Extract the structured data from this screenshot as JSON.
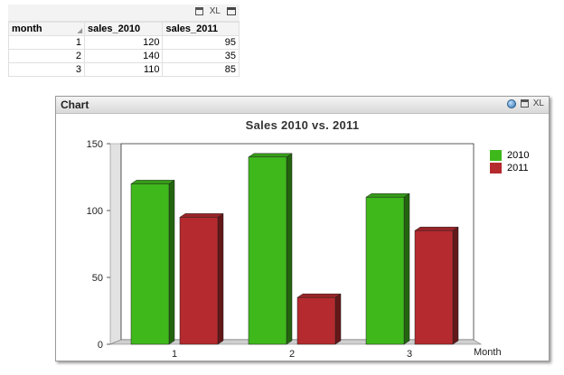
{
  "table": {
    "tools": {
      "xl_label": "XL"
    },
    "headers": [
      "month",
      "sales_2010",
      "sales_2011"
    ],
    "rows": [
      [
        "1",
        "120",
        "95"
      ],
      [
        "2",
        "140",
        "35"
      ],
      [
        "3",
        "110",
        "85"
      ]
    ]
  },
  "chart_window": {
    "caption": "Chart",
    "xl_label": "XL",
    "icons": [
      "globe-icon",
      "print-icon"
    ]
  },
  "chart_data": {
    "type": "bar",
    "title": "Sales 2010 vs. 2011",
    "xlabel": "Month",
    "ylabel": "",
    "categories": [
      "1",
      "2",
      "3"
    ],
    "series": [
      {
        "name": "2010",
        "values": [
          120,
          140,
          110
        ],
        "color": "#3fb81c"
      },
      {
        "name": "2011",
        "values": [
          95,
          35,
          85
        ],
        "color": "#b52a2e"
      }
    ],
    "ylim": [
      0,
      150
    ],
    "yticks": [
      "0",
      "50",
      "100",
      "150"
    ],
    "legend": "top-right",
    "grid": false
  }
}
